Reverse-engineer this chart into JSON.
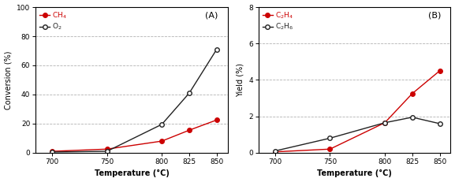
{
  "temperatures": [
    700,
    750,
    800,
    825,
    850
  ],
  "A": {
    "CH4": [
      1.0,
      2.5,
      8.0,
      15.5,
      22.5
    ],
    "O2": [
      0.5,
      1.0,
      19.5,
      41.0,
      71.0
    ]
  },
  "B": {
    "C2H4": [
      0.05,
      0.2,
      1.65,
      3.25,
      4.5
    ],
    "C2H6": [
      0.1,
      0.8,
      1.65,
      1.95,
      1.6
    ]
  },
  "A_ylim": [
    0,
    100
  ],
  "A_yticks": [
    0,
    20,
    40,
    60,
    80,
    100
  ],
  "B_ylim": [
    0,
    8
  ],
  "B_yticks": [
    0,
    2,
    4,
    6,
    8
  ],
  "xlim": [
    685,
    860
  ],
  "xticks": [
    700,
    750,
    800,
    825,
    850
  ],
  "filled_color": "#cc0000",
  "open_color": "#222222",
  "grid_color": "#aaaaaa",
  "label_CH4": "CH$_4$",
  "label_O2": "O$_2$",
  "label_C2H4": "C$_2$H$_4$",
  "label_C2H6": "C$_2$H$_6$",
  "xlabel": "Temperature (°C)",
  "ylabel_A": "Conversion (%)",
  "ylabel_B": "Yield (%)",
  "panel_A": "(A)",
  "panel_B": "(B)"
}
